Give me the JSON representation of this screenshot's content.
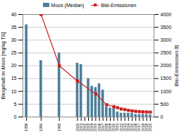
{
  "chart_data": {
    "type": "bar",
    "series": [
      {
        "name": "Moos (Median)",
        "type": "bar",
        "color": "#4d7f99",
        "x": [
          1986,
          1990,
          1995,
          2000,
          2001,
          2003,
          2004,
          2005,
          2006,
          2007,
          2008,
          2009,
          2010,
          2011,
          2012,
          2013,
          2014,
          2015,
          2016,
          2017,
          2018,
          2019,
          2020
        ],
        "values": [
          36,
          22,
          25,
          21,
          20.5,
          15,
          12,
          11.5,
          13,
          10.5,
          4,
          3.5,
          3.5,
          2,
          1.5,
          1.5,
          1.5,
          1.5,
          1,
          1,
          1,
          1,
          0.8
        ]
      },
      {
        "name": "Blei-Emissionen",
        "type": "line",
        "axis": "y2",
        "color": "#cc2222",
        "marker": "square",
        "x": [
          1990,
          1995,
          2000,
          2005,
          2008,
          2010,
          2011,
          2012,
          2013,
          2014,
          2015,
          2016,
          2017,
          2018,
          2019,
          2020
        ],
        "values": [
          4000,
          2000,
          1400,
          900,
          480,
          400,
          360,
          310,
          290,
          260,
          240,
          220,
          210,
          200,
          195,
          190
        ]
      }
    ],
    "xlim": [
      1985,
      2021
    ],
    "xticks": [
      1986,
      1990,
      1995,
      2000,
      2001,
      2002,
      2003,
      2004,
      2005,
      2006,
      2007,
      2008,
      2009,
      2010,
      2011,
      2012,
      2013,
      2014,
      2015,
      2016,
      2017,
      2018,
      2019,
      2020
    ],
    "ylabel": "Bleigehalt im Moos [mg/kg TS]",
    "ylim": [
      0,
      40
    ],
    "yticks": [
      0,
      5,
      10,
      15,
      20,
      25,
      30,
      35,
      40
    ],
    "y2label": "Blei-Emissionen [t]",
    "y2lim": [
      0,
      4000
    ],
    "y2ticks": [
      0,
      500,
      1000,
      1500,
      2000,
      2500,
      3000,
      3500,
      4000
    ],
    "grid": true,
    "legend": "top"
  }
}
